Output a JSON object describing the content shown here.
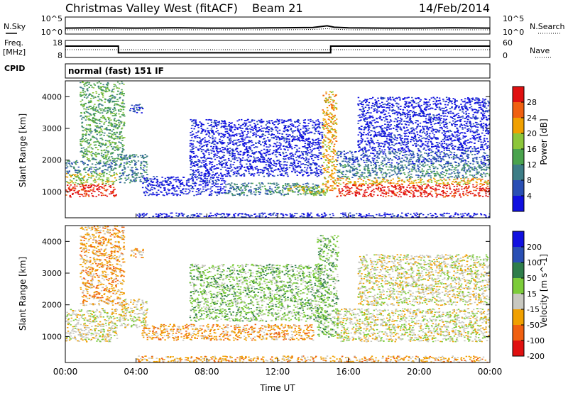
{
  "header": {
    "station": "Christmas Valley West (fitACF)",
    "beam": "Beam 21",
    "date": "14/Feb/2014"
  },
  "noise_panel": {
    "left_label": "N.Sky",
    "right_label": "N.Search",
    "left_ticks": [
      "10^5",
      "10^0"
    ],
    "right_ticks": [
      "10^5",
      "10^0"
    ]
  },
  "freq_panel": {
    "left_label_1": "Freq.",
    "left_label_2": "[MHz]",
    "right_label": "Nave",
    "left_ticks": [
      "18",
      "8"
    ],
    "right_ticks": [
      "60",
      "0"
    ]
  },
  "cpid": {
    "label": "CPID",
    "mode": "normal (fast) 151 IF"
  },
  "x_axis": {
    "label": "Time UT",
    "ticks": [
      "00:00",
      "04:00",
      "08:00",
      "12:00",
      "16:00",
      "20:00",
      "00:00"
    ]
  },
  "chart_data": [
    {
      "type": "line",
      "name": "noise",
      "x_hours": [
        0,
        2,
        4,
        6,
        8,
        10,
        12,
        14,
        14.8,
        15.2,
        16,
        18,
        20,
        22,
        24
      ],
      "n_sky_log10": [
        1.6,
        1.7,
        1.6,
        1.7,
        1.6,
        1.6,
        1.7,
        1.8,
        2.4,
        1.9,
        1.7,
        1.6,
        1.6,
        1.7,
        1.6
      ],
      "n_search_log10": [
        1.0,
        1.0,
        1.0,
        1.0,
        1.0,
        1.0,
        1.0,
        1.1,
        1.4,
        1.2,
        1.0,
        1.0,
        1.0,
        1.0,
        1.0
      ],
      "ylim_log10": [
        0,
        5
      ]
    },
    {
      "type": "line",
      "name": "frequency",
      "x_hours": [
        0,
        3.0,
        3.0,
        15.0,
        15.0,
        24
      ],
      "freq_mhz": [
        15.0,
        15.0,
        10.3,
        10.3,
        15.0,
        15.0
      ],
      "nave": [
        27,
        27,
        27,
        27,
        27,
        27
      ],
      "ylim_freq": [
        8,
        18
      ],
      "ylim_nave": [
        0,
        60
      ]
    },
    {
      "type": "heatmap",
      "name": "power",
      "xlabel": "",
      "ylabel": "Slant Range [km]",
      "xlim_hours": [
        0,
        24
      ],
      "ylim_km": [
        180,
        4500
      ],
      "yticks": [
        1000,
        2000,
        3000,
        4000
      ],
      "colorbar": {
        "label": "Power [dB]",
        "ticks": [
          "4",
          "8",
          "12",
          "16",
          "20",
          "24",
          "28"
        ],
        "colors": [
          "#1010e0",
          "#2a4fb4",
          "#3d7d86",
          "#4aa34d",
          "#8cc63a",
          "#f0a000",
          "#f06010",
          "#e01010"
        ]
      },
      "regions": [
        {
          "t": [
            0.0,
            2.9
          ],
          "r": [
            850,
            1250
          ],
          "level": 7
        },
        {
          "t": [
            0.0,
            2.9
          ],
          "r": [
            1250,
            1600
          ],
          "level": 4
        },
        {
          "t": [
            0.0,
            2.9
          ],
          "r": [
            1600,
            2000
          ],
          "level": 2
        },
        {
          "t": [
            0.8,
            3.3
          ],
          "r": [
            2000,
            4500
          ],
          "level": 3
        },
        {
          "t": [
            3.0,
            4.6
          ],
          "r": [
            1300,
            2200
          ],
          "level": 2
        },
        {
          "t": [
            3.6,
            4.4
          ],
          "r": [
            3500,
            3800
          ],
          "level": 1
        },
        {
          "t": [
            4.3,
            9.0
          ],
          "r": [
            900,
            1500
          ],
          "level": 0
        },
        {
          "t": [
            9.0,
            14.5
          ],
          "r": [
            900,
            1300
          ],
          "level": 2
        },
        {
          "t": [
            12.5,
            14.8
          ],
          "r": [
            900,
            1200
          ],
          "level": 4
        },
        {
          "t": [
            7.0,
            14.5
          ],
          "r": [
            1500,
            3300
          ],
          "level": 0
        },
        {
          "t": [
            14.5,
            15.3
          ],
          "r": [
            1000,
            4200
          ],
          "level": 5
        },
        {
          "t": [
            15.3,
            24.0
          ],
          "r": [
            850,
            1250
          ],
          "level": 7
        },
        {
          "t": [
            15.3,
            24.0
          ],
          "r": [
            1250,
            1450
          ],
          "level": 5
        },
        {
          "t": [
            15.3,
            24.0
          ],
          "r": [
            1450,
            1900
          ],
          "level": 2
        },
        {
          "t": [
            15.3,
            24.0
          ],
          "r": [
            1900,
            2300
          ],
          "level": 1
        },
        {
          "t": [
            16.5,
            24.0
          ],
          "r": [
            2300,
            4000
          ],
          "level": 0
        },
        {
          "t": [
            4.0,
            24.0
          ],
          "r": [
            180,
            350
          ],
          "level": 0
        }
      ]
    },
    {
      "type": "heatmap",
      "name": "velocity",
      "xlabel": "Time UT",
      "ylabel": "Slant Range [km]",
      "xlim_hours": [
        0,
        24
      ],
      "ylim_km": [
        180,
        4500
      ],
      "yticks": [
        1000,
        2000,
        3000,
        4000
      ],
      "colorbar": {
        "label": "Velocity [m s^-1]",
        "ticks": [
          "200",
          "100",
          "50",
          "15",
          "-15",
          "-50",
          "-100",
          "-200"
        ],
        "colors": [
          "#1010e0",
          "#2a4fb4",
          "#2e7d4a",
          "#7ccc3a",
          "#c8c8c0",
          "#f0a000",
          "#f06010",
          "#e01010"
        ]
      },
      "regions": [
        {
          "t": [
            0.0,
            2.9
          ],
          "r": [
            850,
            1900
          ],
          "level": 4
        },
        {
          "t": [
            0.8,
            3.3
          ],
          "r": [
            2000,
            4500
          ],
          "level": 5
        },
        {
          "t": [
            3.0,
            4.6
          ],
          "r": [
            1300,
            2200
          ],
          "level": 4
        },
        {
          "t": [
            3.6,
            4.4
          ],
          "r": [
            3500,
            3800
          ],
          "level": 5
        },
        {
          "t": [
            4.3,
            14.0
          ],
          "r": [
            900,
            1400
          ],
          "level": 5
        },
        {
          "t": [
            7.0,
            14.5
          ],
          "r": [
            1500,
            3300
          ],
          "level": 3
        },
        {
          "t": [
            14.2,
            15.4
          ],
          "r": [
            1000,
            4200
          ],
          "level": 3
        },
        {
          "t": [
            15.3,
            24.0
          ],
          "r": [
            850,
            1900
          ],
          "level": 4
        },
        {
          "t": [
            16.5,
            24.0
          ],
          "r": [
            2000,
            3600
          ],
          "level": 4
        },
        {
          "t": [
            4.0,
            24.0
          ],
          "r": [
            180,
            400
          ],
          "level": 5
        }
      ]
    }
  ]
}
